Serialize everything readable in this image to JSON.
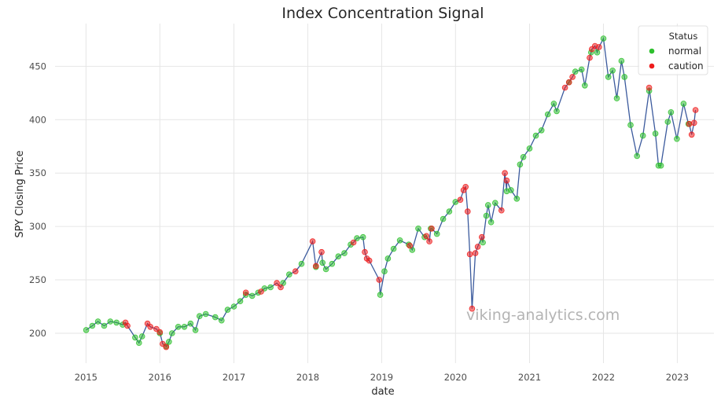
{
  "watermark": "viking-analytics.com",
  "chart_data": {
    "type": "scatter",
    "title": "Index Concentration Signal",
    "xlabel": "date",
    "ylabel": "SPY Closing Price",
    "x_ticks": [
      "2015",
      "2016",
      "2017",
      "2018",
      "2019",
      "2020",
      "2021",
      "2022",
      "2023"
    ],
    "y_ticks": [
      200,
      250,
      300,
      350,
      400,
      450
    ],
    "xlim": [
      "2014-08-01",
      "2023-07-01"
    ],
    "ylim": [
      172,
      490
    ],
    "grid": true,
    "line_color": "#3b5a9d",
    "legend": {
      "title": "Status",
      "placement": "top-right",
      "entries": [
        {
          "label": "normal",
          "color": "#2ec02e"
        },
        {
          "label": "caution",
          "color": "#ee1c1c"
        }
      ]
    },
    "series": [
      {
        "name": "normal",
        "color": "#2ec02e",
        "points": [
          [
            "2015-01-02",
            203
          ],
          [
            "2015-02-01",
            207
          ],
          [
            "2015-03-01",
            211
          ],
          [
            "2015-04-01",
            207
          ],
          [
            "2015-05-01",
            211
          ],
          [
            "2015-06-01",
            210
          ],
          [
            "2015-07-01",
            208
          ],
          [
            "2015-09-01",
            196
          ],
          [
            "2015-09-20",
            191
          ],
          [
            "2015-10-05",
            197
          ],
          [
            "2016-01-01",
            200
          ],
          [
            "2016-02-01",
            188
          ],
          [
            "2016-02-15",
            192
          ],
          [
            "2016-03-01",
            200
          ],
          [
            "2016-04-01",
            206
          ],
          [
            "2016-05-01",
            206
          ],
          [
            "2016-06-01",
            209
          ],
          [
            "2016-06-25",
            203
          ],
          [
            "2016-07-15",
            216
          ],
          [
            "2016-08-15",
            218
          ],
          [
            "2016-10-01",
            215
          ],
          [
            "2016-11-01",
            212
          ],
          [
            "2016-12-01",
            222
          ],
          [
            "2017-01-01",
            225
          ],
          [
            "2017-02-01",
            230
          ],
          [
            "2017-03-01",
            236
          ],
          [
            "2017-04-01",
            235
          ],
          [
            "2017-05-01",
            238
          ],
          [
            "2017-06-01",
            242
          ],
          [
            "2017-07-01",
            243
          ],
          [
            "2017-09-01",
            247
          ],
          [
            "2017-10-01",
            255
          ],
          [
            "2017-12-01",
            265
          ],
          [
            "2018-02-10",
            262
          ],
          [
            "2018-03-15",
            266
          ],
          [
            "2018-04-01",
            260
          ],
          [
            "2018-05-01",
            265
          ],
          [
            "2018-06-01",
            272
          ],
          [
            "2018-07-01",
            275
          ],
          [
            "2018-08-01",
            283
          ],
          [
            "2018-09-01",
            289
          ],
          [
            "2018-10-01",
            290
          ],
          [
            "2018-12-25",
            236
          ],
          [
            "2019-01-15",
            258
          ],
          [
            "2019-02-01",
            270
          ],
          [
            "2019-03-01",
            279
          ],
          [
            "2019-04-01",
            287
          ],
          [
            "2019-05-15",
            283
          ],
          [
            "2019-06-01",
            278
          ],
          [
            "2019-07-01",
            298
          ],
          [
            "2019-08-01",
            290
          ],
          [
            "2019-09-01",
            298
          ],
          [
            "2019-10-01",
            293
          ],
          [
            "2019-11-01",
            307
          ],
          [
            "2019-12-01",
            314
          ],
          [
            "2020-01-01",
            323
          ],
          [
            "2020-05-15",
            285
          ],
          [
            "2020-06-01",
            310
          ],
          [
            "2020-06-10",
            320
          ],
          [
            "2020-06-25",
            304
          ],
          [
            "2020-07-15",
            322
          ],
          [
            "2020-09-10",
            333
          ],
          [
            "2020-10-01",
            334
          ],
          [
            "2020-10-30",
            326
          ],
          [
            "2020-11-15",
            358
          ],
          [
            "2020-12-01",
            365
          ],
          [
            "2021-01-01",
            373
          ],
          [
            "2021-02-01",
            385
          ],
          [
            "2021-03-01",
            390
          ],
          [
            "2021-04-01",
            405
          ],
          [
            "2021-05-01",
            415
          ],
          [
            "2021-05-15",
            408
          ],
          [
            "2021-07-15",
            435
          ],
          [
            "2021-08-15",
            445
          ],
          [
            "2021-09-15",
            447
          ],
          [
            "2021-10-01",
            432
          ],
          [
            "2021-11-01",
            463
          ],
          [
            "2021-12-01",
            463
          ],
          [
            "2022-01-01",
            476
          ],
          [
            "2022-01-25",
            440
          ],
          [
            "2022-02-15",
            446
          ],
          [
            "2022-03-08",
            420
          ],
          [
            "2022-03-31",
            455
          ],
          [
            "2022-04-15",
            440
          ],
          [
            "2022-05-15",
            395
          ],
          [
            "2022-06-16",
            366
          ],
          [
            "2022-07-15",
            385
          ],
          [
            "2022-08-15",
            427
          ],
          [
            "2022-09-15",
            387
          ],
          [
            "2022-09-30",
            357
          ],
          [
            "2022-10-12",
            357
          ],
          [
            "2022-11-15",
            398
          ],
          [
            "2022-12-01",
            407
          ],
          [
            "2022-12-30",
            382
          ],
          [
            "2023-02-01",
            415
          ],
          [
            "2023-02-25",
            396
          ]
        ]
      },
      {
        "name": "caution",
        "color": "#ee1c1c",
        "points": [
          [
            "2015-07-15",
            210
          ],
          [
            "2015-07-25",
            207
          ],
          [
            "2015-11-01",
            209
          ],
          [
            "2015-11-15",
            206
          ],
          [
            "2015-12-15",
            204
          ],
          [
            "2016-01-01",
            201
          ],
          [
            "2016-01-15",
            190
          ],
          [
            "2016-02-01",
            187
          ],
          [
            "2017-03-01",
            238
          ],
          [
            "2017-05-15",
            239
          ],
          [
            "2017-08-01",
            247
          ],
          [
            "2017-08-20",
            243
          ],
          [
            "2017-11-01",
            258
          ],
          [
            "2018-01-25",
            286
          ],
          [
            "2018-02-10",
            263
          ],
          [
            "2018-03-10",
            276
          ],
          [
            "2018-08-15",
            285
          ],
          [
            "2018-10-10",
            276
          ],
          [
            "2018-10-20",
            270
          ],
          [
            "2018-11-01",
            268
          ],
          [
            "2018-12-20",
            250
          ],
          [
            "2019-05-20",
            282
          ],
          [
            "2019-08-10",
            291
          ],
          [
            "2019-08-25",
            286
          ],
          [
            "2019-09-05",
            298
          ],
          [
            "2020-01-25",
            325
          ],
          [
            "2020-02-10",
            334
          ],
          [
            "2020-02-20",
            337
          ],
          [
            "2020-03-01",
            314
          ],
          [
            "2020-03-12",
            274
          ],
          [
            "2020-03-23",
            223
          ],
          [
            "2020-04-08",
            275
          ],
          [
            "2020-04-20",
            281
          ],
          [
            "2020-05-10",
            290
          ],
          [
            "2020-08-15",
            315
          ],
          [
            "2020-09-01",
            350
          ],
          [
            "2020-09-10",
            343
          ],
          [
            "2021-06-25",
            430
          ],
          [
            "2021-07-15",
            435
          ],
          [
            "2021-08-01",
            440
          ],
          [
            "2021-10-25",
            458
          ],
          [
            "2021-11-05",
            466
          ],
          [
            "2021-11-20",
            469
          ],
          [
            "2021-12-10",
            468
          ],
          [
            "2022-08-15",
            430
          ],
          [
            "2023-03-01",
            396
          ],
          [
            "2023-03-13",
            386
          ],
          [
            "2023-03-25",
            397
          ],
          [
            "2023-04-01",
            409
          ]
        ]
      }
    ]
  }
}
